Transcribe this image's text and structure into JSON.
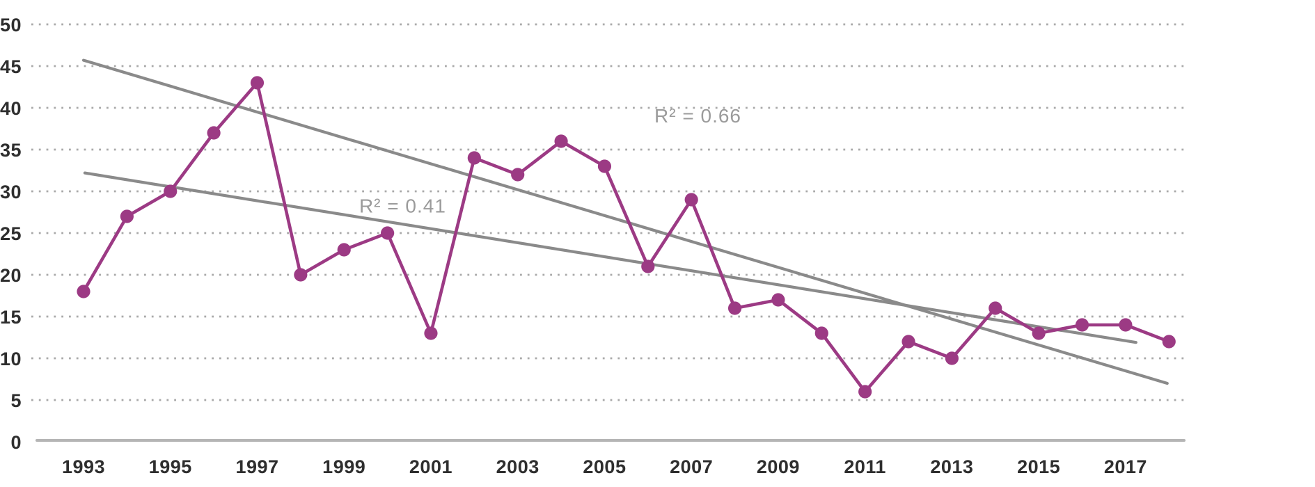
{
  "chart_data": {
    "type": "line",
    "title": "",
    "xlabel": "",
    "ylabel": "",
    "x": [
      1993,
      1994,
      1995,
      1996,
      1997,
      1998,
      1999,
      2000,
      2001,
      2002,
      2003,
      2004,
      2005,
      2006,
      2007,
      2008,
      2009,
      2010,
      2011,
      2012,
      2013,
      2014,
      2015,
      2016,
      2017,
      2018
    ],
    "series": [
      {
        "name": "annual-values",
        "values": [
          18,
          27,
          30,
          37,
          43,
          20,
          23,
          25,
          13,
          34,
          32,
          36,
          33,
          21,
          29,
          16,
          17,
          13,
          6,
          12,
          10,
          16,
          13,
          14,
          14,
          12
        ]
      }
    ],
    "trendlines": [
      {
        "name": "trend-steep",
        "r2_label": "R² = 0.66",
        "start_year": 1993.0,
        "start_value": 45.7,
        "end_year": 2017.96,
        "end_value": 7.0,
        "label_year": 2007.15,
        "label_value": 39.0
      },
      {
        "name": "trend-shallow",
        "r2_label": "R² = 0.41",
        "start_year": 1993.03,
        "start_value": 32.2,
        "end_year": 2017.24,
        "end_value": 11.9,
        "label_year": 2000.35,
        "label_value": 28.2
      }
    ],
    "y_axis": {
      "min": 0,
      "max": 50,
      "step": 5,
      "tick_labels": [
        "0",
        "5",
        "10",
        "15",
        "20",
        "25",
        "30",
        "35",
        "40",
        "45",
        "50"
      ],
      "gridlines": "dotted"
    },
    "x_axis": {
      "tick_labels": [
        "1993",
        "1995",
        "1997",
        "1999",
        "2001",
        "2003",
        "2005",
        "2007",
        "2009",
        "2011",
        "2013",
        "2015",
        "2017"
      ],
      "tick_years": [
        1993,
        1995,
        1997,
        1999,
        2001,
        2003,
        2005,
        2007,
        2009,
        2011,
        2013,
        2015,
        2017
      ]
    },
    "legend": "none",
    "colors": {
      "series_line": "#9c3a84",
      "marker_fill": "#9c3a84",
      "trend_line": "#8a8a8a",
      "grid_dots": "#a9a9a9",
      "axis_line": "#b5b5b5",
      "tick_text": "#2e2e2e",
      "r2_text": "#9b9b9b",
      "background": "#ffffff"
    }
  }
}
